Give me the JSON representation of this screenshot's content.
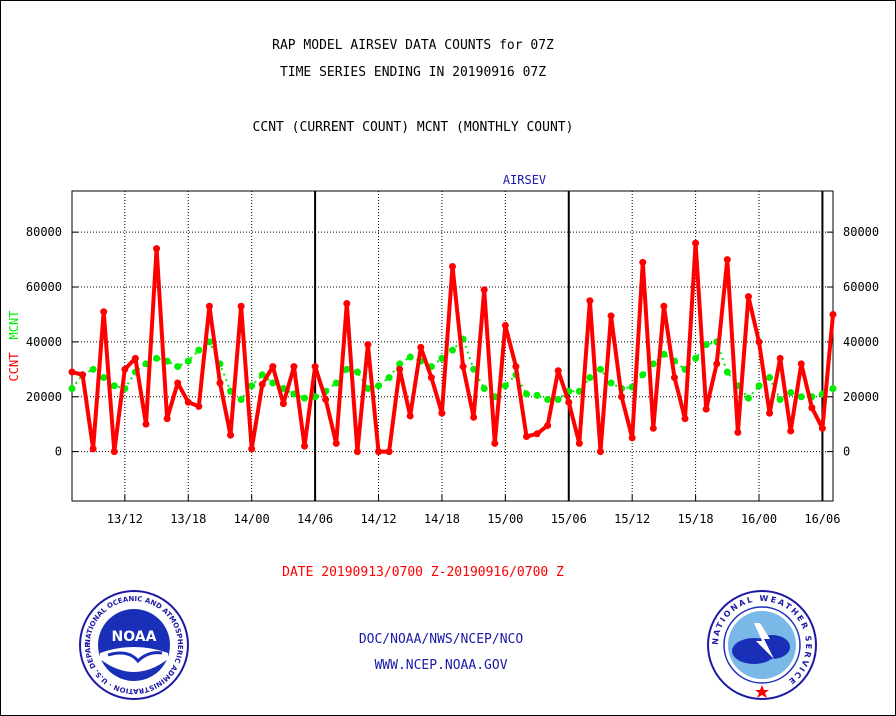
{
  "header": {
    "title_line1": "RAP MODEL AIRSEV DATA COUNTS for 07Z",
    "title_line2": "TIME SERIES ENDING IN 20190916 07Z",
    "subtitle": "CCNT (CURRENT COUNT) MCNT (MONTHLY COUNT)"
  },
  "footer": {
    "date_range": "DATE 20190913/0700 Z-20190916/0700 Z",
    "org": "DOC/NOAA/NWS/NCEP/NCO",
    "url": "WWW.NCEP.NOAA.GOV"
  },
  "logos": {
    "noaa": {
      "text": "NOAA",
      "ring_text": "NATIONAL OCEANIC AND ATMOSPHERIC ADMINISTRATION · U.S. DEPARTMENT OF COMMERCE"
    },
    "nws": {
      "ring_text": "NATIONAL WEATHER SERVICE"
    }
  },
  "chart_data": {
    "type": "line",
    "title": "AIRSEV",
    "ylabel_left_ccnt": "CCNT",
    "ylabel_left_mcnt": "MCNT",
    "x_ticks": [
      "13/12",
      "13/18",
      "14/00",
      "14/06",
      "14/12",
      "14/18",
      "15/00",
      "15/06",
      "15/12",
      "15/18",
      "16/00",
      "16/06"
    ],
    "y_ticks": [
      "0",
      "20000",
      "40000",
      "60000",
      "80000"
    ],
    "y_ticks_right": [
      "0",
      "20000",
      "40000",
      "60000",
      "80000"
    ],
    "ylim": [
      -18000,
      95000
    ],
    "x_range_hours": [
      0,
      72
    ],
    "grid": true,
    "day_boundaries_hours": [
      23,
      47,
      71
    ],
    "colors": {
      "ccnt": "#ff0000",
      "mcnt": "#00ee00",
      "axis": "#000000",
      "title": "#1a1aa6",
      "date": "#ff0000",
      "footer": "#1a1aa6"
    },
    "series": [
      {
        "name": "CCNT",
        "x": [
          0,
          1,
          2,
          3,
          4,
          5,
          6,
          7,
          8,
          9,
          10,
          11,
          12,
          13,
          14,
          15,
          16,
          17,
          18,
          19,
          20,
          21,
          22,
          23,
          24,
          25,
          26,
          27,
          28,
          29,
          30,
          31,
          32,
          33,
          34,
          35,
          36,
          37,
          38,
          39,
          40,
          41,
          42,
          43,
          44,
          45,
          46,
          47,
          48,
          49,
          50,
          51,
          52,
          53,
          54,
          55,
          56,
          57,
          58,
          59,
          60,
          61,
          62,
          63,
          64,
          65,
          66,
          67,
          68,
          69,
          70,
          71,
          72
        ],
        "values": [
          29000,
          28000,
          1000,
          51000,
          0,
          30000,
          34000,
          10000,
          74000,
          12000,
          25000,
          18000,
          16500,
          53000,
          25000,
          6000,
          53000,
          1000,
          24500,
          31000,
          17500,
          31000,
          2000,
          31000,
          19000,
          3000,
          54000,
          0,
          39000,
          0,
          0,
          30000,
          13000,
          38000,
          27000,
          14000,
          67500,
          31000,
          12500,
          59000,
          3000,
          46000,
          31000,
          5500,
          6500,
          9500,
          29500,
          18000,
          3000,
          55000,
          0,
          49500,
          20000,
          5000,
          69000,
          8500,
          53000,
          27000,
          12000,
          76000,
          15500,
          32000,
          70000,
          7000,
          56500,
          40000,
          14000,
          34000,
          7500,
          32000,
          16000,
          8500,
          50000
        ]
      },
      {
        "name": "MCNT",
        "x": [
          0,
          1,
          2,
          3,
          4,
          5,
          6,
          7,
          8,
          9,
          10,
          11,
          12,
          13,
          14,
          15,
          16,
          17,
          18,
          19,
          20,
          21,
          22,
          23,
          24,
          25,
          26,
          27,
          28,
          29,
          30,
          31,
          32,
          33,
          34,
          35,
          36,
          37,
          38,
          39,
          40,
          41,
          42,
          43,
          44,
          45,
          46,
          47,
          48,
          49,
          50,
          51,
          52,
          53,
          54,
          55,
          56,
          57,
          58,
          59,
          60,
          61,
          62,
          63,
          64,
          65,
          66,
          67,
          68,
          69,
          70,
          71,
          72
        ],
        "values": [
          23000,
          28000,
          30000,
          27000,
          24000,
          23000,
          29000,
          32000,
          34000,
          33000,
          31000,
          33000,
          37000,
          40000,
          32000,
          22000,
          19000,
          24000,
          28000,
          25000,
          23000,
          21000,
          19500,
          20000,
          22000,
          25000,
          30000,
          29000,
          23000,
          24000,
          27000,
          32000,
          34500,
          33000,
          31000,
          34000,
          37000,
          41000,
          30000,
          23000,
          20000,
          24000,
          28000,
          21000,
          20500,
          19000,
          19000,
          22000,
          22000,
          27000,
          30000,
          25000,
          23000,
          23500,
          28000,
          32000,
          35500,
          33000,
          30000,
          34000,
          39000,
          40000,
          29000,
          24000,
          19500,
          24000,
          27000,
          19000,
          21500,
          20000,
          20000,
          21000,
          23000
        ]
      }
    ]
  }
}
